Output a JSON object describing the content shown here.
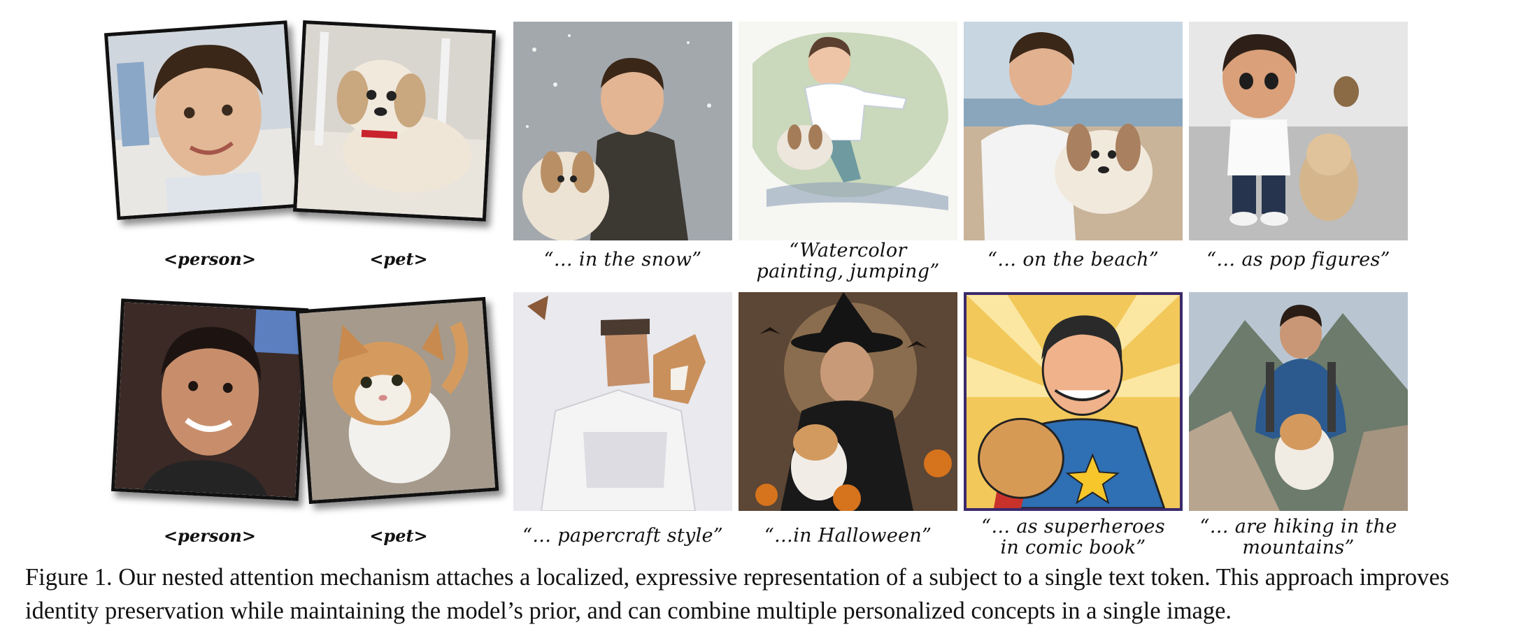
{
  "tokens": {
    "row1_person": "<person>",
    "row1_pet": "<pet>",
    "row2_person": "<person>",
    "row2_pet": "<pet>"
  },
  "captions": {
    "r1c1": "“… in the snow”",
    "r1c2": "“Watercolor\npainting, jumping”",
    "r1c3": "“… on the beach”",
    "r1c4": "“… as pop figures”",
    "r2c1": "“… papercraft style”",
    "r2c2": "“…in Halloween”",
    "r2c3": "“… as superheroes\nin comic book”",
    "r2c4": "“… are hiking in the\nmountains”"
  },
  "figure_caption": "Figure 1.  Our nested attention mechanism attaches a localized, expressive representation of a subject to a single text token. This approach improves identity preservation while maintaining the model’s prior, and can combine multiple personalized concepts in a single image.",
  "images": {
    "r1_person": "boy-photo",
    "r1_pet": "shih-tzu-photo",
    "r2_person": "man-photo",
    "r2_pet": "cat-photo",
    "r1_out": [
      "boy-dog-snow",
      "boy-dog-watercolor",
      "boy-dog-beach",
      "boy-dog-pop-figures"
    ],
    "r2_out": [
      "man-cat-papercraft",
      "man-cat-halloween",
      "man-cat-comic",
      "man-cat-hiking"
    ]
  }
}
